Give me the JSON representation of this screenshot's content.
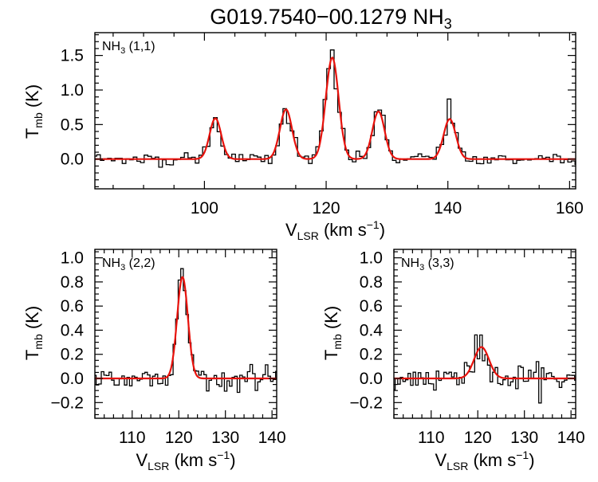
{
  "figure": {
    "title_main": "G019.7540−00.1279 NH",
    "title_sub": "3"
  },
  "colors": {
    "observed": "#000000",
    "fit": "#e8120c"
  },
  "chart_data": [
    {
      "type": "line",
      "panel": "top",
      "label_main": "NH",
      "label_sub": "3",
      "label_tail": " (1,1)",
      "xlabel_main": "V",
      "xlabel_sub": "LSR",
      "xlabel_unit": " (km s",
      "xlabel_exp": "−1",
      "xlabel_close": ")",
      "ylabel_main": "T",
      "ylabel_sub": "mb",
      "ylabel_unit": " (K)",
      "xlim": [
        82,
        161
      ],
      "ylim": [
        -0.43,
        1.83
      ],
      "xticks": [
        100,
        120,
        140,
        160
      ],
      "xtick_labels": [
        "100",
        "120",
        "140",
        "160"
      ],
      "yticks": [
        0.0,
        0.5,
        1.0,
        1.5
      ],
      "ytick_labels": [
        "0.0",
        "0.5",
        "1.0",
        "1.5"
      ],
      "fit_components": [
        {
          "center": 101.8,
          "amplitude": 0.59,
          "sigma": 0.95
        },
        {
          "center": 113.4,
          "amplitude": 0.72,
          "sigma": 1.0
        },
        {
          "center": 121.0,
          "amplitude": 1.47,
          "sigma": 1.05
        },
        {
          "center": 128.6,
          "amplitude": 0.69,
          "sigma": 1.0
        },
        {
          "center": 140.3,
          "amplitude": 0.58,
          "sigma": 1.0
        }
      ],
      "observed_peaks": [
        {
          "x": 101.8,
          "y": 0.6
        },
        {
          "x": 113.4,
          "y": 0.73
        },
        {
          "x": 121.0,
          "y": 1.58
        },
        {
          "x": 128.6,
          "y": 0.71
        },
        {
          "x": 140.3,
          "y": 0.87
        }
      ],
      "noise_rms": 0.045,
      "channel_width": 0.6,
      "series": [
        {
          "name": "observed spectrum",
          "style": "histogram"
        },
        {
          "name": "gaussian fit",
          "style": "line"
        }
      ]
    },
    {
      "type": "line",
      "panel": "bottom-left",
      "label_main": "NH",
      "label_sub": "3",
      "label_tail": " (2,2)",
      "xlabel_main": "V",
      "xlabel_sub": "LSR",
      "xlabel_unit": " (km s",
      "xlabel_exp": "−1",
      "xlabel_close": ")",
      "ylabel_main": "T",
      "ylabel_sub": "mb",
      "ylabel_unit": " (K)",
      "xlim": [
        102,
        141
      ],
      "ylim": [
        -0.33,
        1.07
      ],
      "xticks": [
        110,
        120,
        130,
        140
      ],
      "xtick_labels": [
        "110",
        "120",
        "130",
        "140"
      ],
      "yticks": [
        -0.2,
        0.0,
        0.2,
        0.4,
        0.6,
        0.8,
        1.0
      ],
      "ytick_labels": [
        "−0.2",
        "0.0",
        "0.2",
        "0.4",
        "0.6",
        "0.8",
        "1.0"
      ],
      "fit_components": [
        {
          "center": 120.8,
          "amplitude": 0.84,
          "sigma": 1.15
        }
      ],
      "observed_peaks": [
        {
          "x": 120.8,
          "y": 0.91
        }
      ],
      "noise_rms": 0.05,
      "channel_width": 0.55,
      "series": [
        {
          "name": "observed spectrum",
          "style": "histogram"
        },
        {
          "name": "gaussian fit",
          "style": "line"
        }
      ]
    },
    {
      "type": "line",
      "panel": "bottom-right",
      "label_main": "NH",
      "label_sub": "3",
      "label_tail": " (3,3)",
      "xlabel_main": "V",
      "xlabel_sub": "LSR",
      "xlabel_unit": " (km s",
      "xlabel_exp": "−1",
      "xlabel_close": ")",
      "ylabel_main": "T",
      "ylabel_sub": "mb",
      "ylabel_unit": " (K)",
      "xlim": [
        102,
        141
      ],
      "ylim": [
        -0.33,
        1.07
      ],
      "xticks": [
        110,
        120,
        130,
        140
      ],
      "xtick_labels": [
        "110",
        "120",
        "130",
        "140"
      ],
      "yticks": [
        -0.2,
        0.0,
        0.2,
        0.4,
        0.6,
        0.8,
        1.0
      ],
      "ytick_labels": [
        "−0.2",
        "0.0",
        "0.2",
        "0.4",
        "0.6",
        "0.8",
        "1.0"
      ],
      "fit_components": [
        {
          "center": 120.8,
          "amplitude": 0.26,
          "sigma": 1.6
        }
      ],
      "observed_peaks": [
        {
          "x": 120.8,
          "y": 0.36
        }
      ],
      "noise_rms": 0.06,
      "channel_width": 0.55,
      "series": [
        {
          "name": "observed spectrum",
          "style": "histogram"
        },
        {
          "name": "gaussian fit",
          "style": "line"
        }
      ]
    }
  ]
}
